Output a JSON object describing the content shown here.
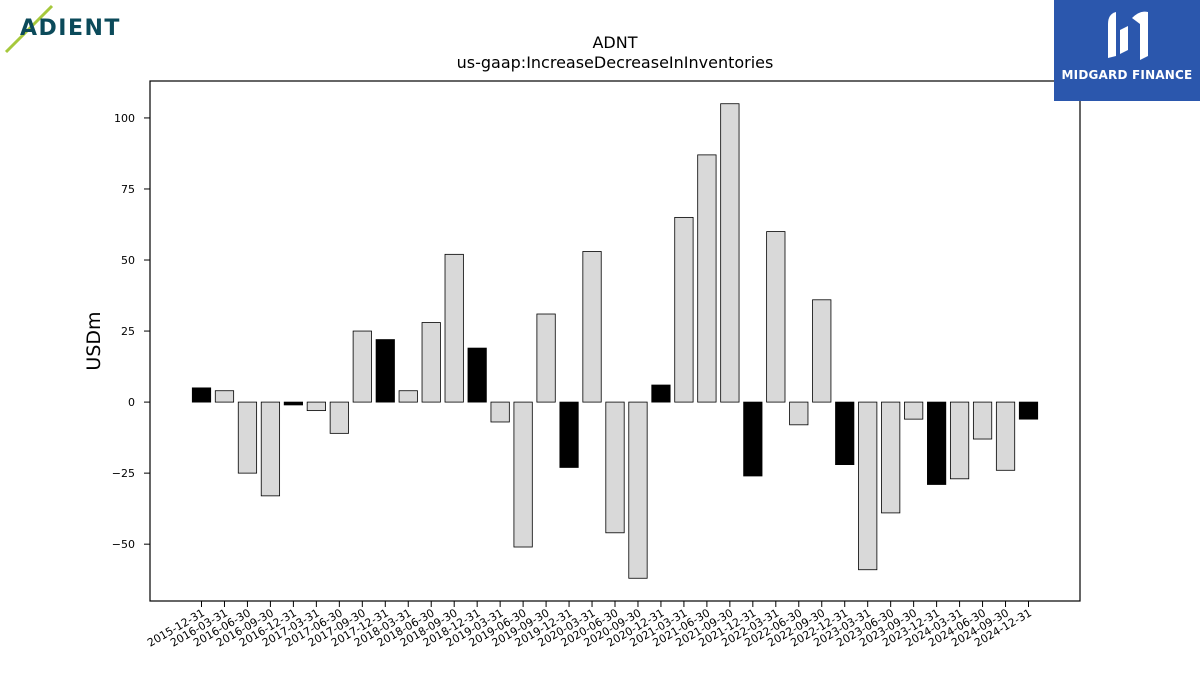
{
  "logos": {
    "left_text": "ADIENT",
    "right_text": "MIDGARD FINANCE",
    "left_accent": "#a6c83c",
    "left_color": "#0b4a5a",
    "right_bg": "#2b57ad"
  },
  "chart_data": {
    "type": "bar",
    "title": "ADNT",
    "subtitle": "us-gaap:IncreaseDecreaseInInventories",
    "xlabel": "",
    "ylabel": "USDm",
    "ylim": [
      -70,
      113
    ],
    "yticks": [
      100,
      75,
      50,
      25,
      0,
      -25,
      -50
    ],
    "grid": false,
    "legend": "none",
    "colors": {
      "q4": "#000000",
      "other": "#d9d9d9",
      "edge": "#000000"
    },
    "categories": [
      "2015-12-31",
      "2016-03-31",
      "2016-06-30",
      "2016-09-30",
      "2016-12-31",
      "2017-03-31",
      "2017-06-30",
      "2017-09-30",
      "2017-12-31",
      "2018-03-31",
      "2018-06-30",
      "2018-09-30",
      "2018-12-31",
      "2019-03-31",
      "2019-06-30",
      "2019-09-30",
      "2019-12-31",
      "2020-03-31",
      "2020-06-30",
      "2020-09-30",
      "2020-12-31",
      "2021-03-31",
      "2021-06-30",
      "2021-09-30",
      "2021-12-31",
      "2022-03-31",
      "2022-06-30",
      "2022-09-30",
      "2022-12-31",
      "2023-03-31",
      "2023-06-30",
      "2023-09-30",
      "2023-12-31",
      "2024-03-31",
      "2024-06-30",
      "2024-09-30",
      "2024-12-31"
    ],
    "values": [
      5,
      4,
      -25,
      -33,
      -1,
      -3,
      -11,
      25,
      22,
      4,
      28,
      52,
      19,
      -7,
      -51,
      31,
      -23,
      53,
      -46,
      -62,
      6,
      65,
      87,
      105,
      -26,
      60,
      -8,
      36,
      -22,
      -59,
      -39,
      -6,
      -29,
      -27,
      -13,
      -24,
      -6
    ],
    "highlight": [
      true,
      false,
      false,
      false,
      true,
      false,
      false,
      false,
      true,
      false,
      false,
      false,
      true,
      false,
      false,
      false,
      true,
      false,
      false,
      false,
      true,
      false,
      false,
      false,
      true,
      false,
      false,
      false,
      true,
      false,
      false,
      false,
      true,
      false,
      false,
      false,
      true
    ]
  }
}
